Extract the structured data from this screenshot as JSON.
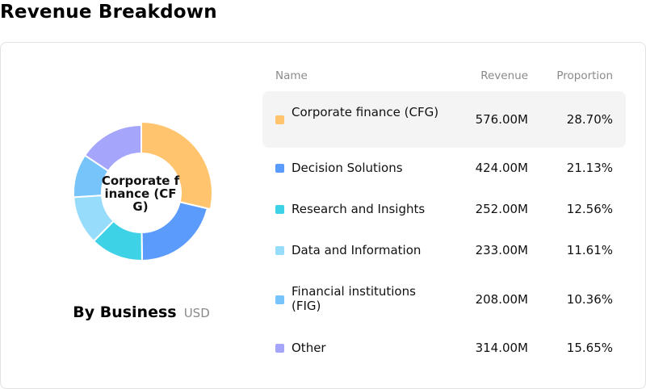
{
  "page": {
    "title": "Revenue Breakdown"
  },
  "donut": {
    "center_label": "Corporate finance (CFG)",
    "caption_title": "By Business",
    "caption_unit": "USD"
  },
  "table": {
    "columns": [
      "Name",
      "Revenue",
      "Proportion"
    ],
    "rows": [
      {
        "name": "Corporate finance (CFG)",
        "revenue": "576.00M",
        "proportion": "28.70%",
        "color": "#FFC46D"
      },
      {
        "name": "Decision Solutions",
        "revenue": "424.00M",
        "proportion": "21.13%",
        "color": "#5B9BFB"
      },
      {
        "name": "Research and Insights",
        "revenue": "252.00M",
        "proportion": "12.56%",
        "color": "#3ED2E6"
      },
      {
        "name": "Data and Information",
        "revenue": "233.00M",
        "proportion": "11.61%",
        "color": "#98DCFB"
      },
      {
        "name": "Financial institutions (FIG)",
        "revenue": "208.00M",
        "proportion": "10.36%",
        "color": "#76C4FA"
      },
      {
        "name": "Other",
        "revenue": "314.00M",
        "proportion": "15.65%",
        "color": "#A5A6FB"
      }
    ]
  },
  "chart_data": {
    "type": "pie",
    "variant": "donut",
    "title": "By Business",
    "unit": "USD",
    "highlighted": "Corporate finance (CFG)",
    "slices": [
      {
        "label": "Corporate finance (CFG)",
        "value": 576.0,
        "percent": 28.7,
        "color": "#FFC46D"
      },
      {
        "label": "Decision Solutions",
        "value": 424.0,
        "percent": 21.13,
        "color": "#5B9BFB"
      },
      {
        "label": "Research and Insights",
        "value": 252.0,
        "percent": 12.56,
        "color": "#3ED2E6"
      },
      {
        "label": "Data and Information",
        "value": 233.0,
        "percent": 11.61,
        "color": "#98DCFB"
      },
      {
        "label": "Financial institutions (FIG)",
        "value": 208.0,
        "percent": 10.36,
        "color": "#76C4FA"
      },
      {
        "label": "Other",
        "value": 314.0,
        "percent": 15.65,
        "color": "#A5A6FB"
      }
    ]
  }
}
